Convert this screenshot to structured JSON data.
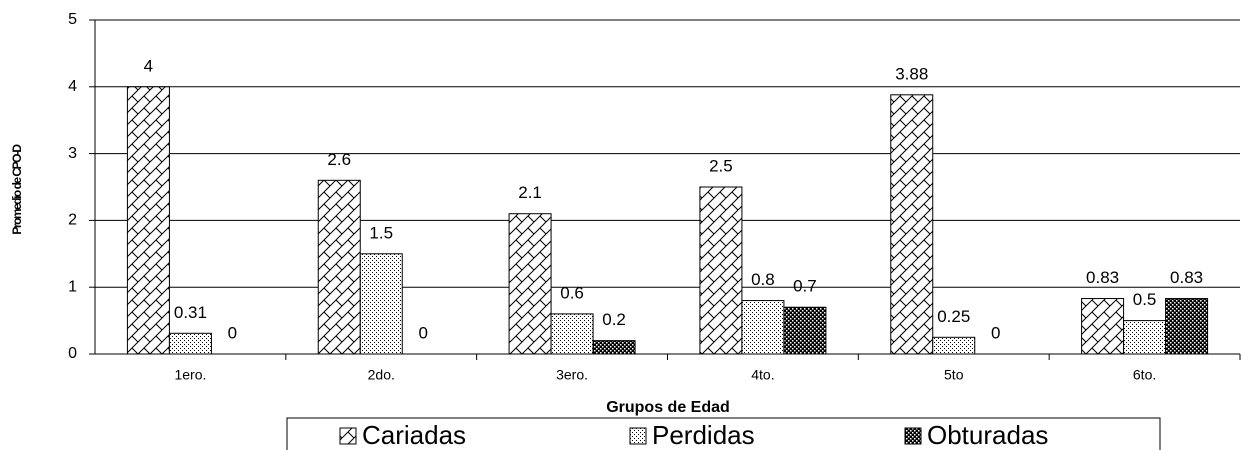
{
  "chart_data": {
    "type": "bar",
    "y_label": "Promedio de CPO-D",
    "x_label": "Grupos de Edad",
    "categories": [
      "1ero.",
      "2do.",
      "3ero.",
      "4to.",
      "5to",
      "6to."
    ],
    "series": [
      {
        "name": "Cariadas",
        "color": "#000000",
        "pattern": "crosshatch",
        "values": [
          4,
          2.6,
          2.1,
          2.5,
          3.88,
          0.83
        ]
      },
      {
        "name": "Perdidas",
        "color": "#000000",
        "pattern": "dots",
        "values": [
          0.31,
          1.5,
          0.6,
          0.8,
          0.25,
          0.5
        ]
      },
      {
        "name": "Obturadas",
        "color": "#000000",
        "pattern": "dense-dots",
        "values": [
          0,
          0,
          0.2,
          0.7,
          0,
          0.83
        ]
      }
    ],
    "ylim": [
      0,
      5
    ],
    "yticks": [
      0,
      1,
      2,
      3,
      4,
      5
    ],
    "grid": true,
    "legend": "bottom"
  }
}
